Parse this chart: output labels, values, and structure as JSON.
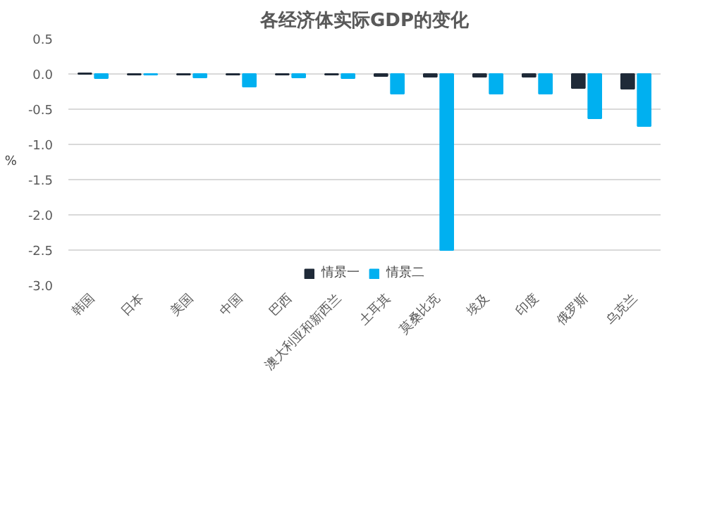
{
  "chart_data": {
    "type": "bar",
    "title": "各经济体实际GDP的变化",
    "ylabel": "%",
    "categories": [
      "韩国",
      "日本",
      "美国",
      "中国",
      "巴西",
      "澳大利亚和新西兰",
      "土耳其",
      "莫桑比克",
      "埃及",
      "印度",
      "俄罗斯",
      "乌克兰"
    ],
    "series": [
      {
        "name": "情景一",
        "color": "#1f2a38",
        "values": [
          0.01,
          -0.01,
          -0.01,
          -0.01,
          -0.01,
          -0.01,
          -0.03,
          -0.04,
          -0.04,
          -0.04,
          -0.2,
          -0.21
        ]
      },
      {
        "name": "情景二",
        "color": "#00b0f0",
        "values": [
          -0.06,
          -0.01,
          -0.05,
          -0.18,
          -0.05,
          -0.06,
          -0.28,
          -2.5,
          -0.28,
          -0.28,
          -0.63,
          -0.74
        ]
      }
    ],
    "ylim": [
      -3.0,
      0.5
    ],
    "yticks": [
      {
        "value": 0.5,
        "label": "0.5"
      },
      {
        "value": 0,
        "label": "0.0"
      },
      {
        "value": -0.5,
        "label": "-0.5"
      },
      {
        "value": -1,
        "label": "-1.0"
      },
      {
        "value": -1.5,
        "label": "-1.5"
      },
      {
        "value": -2,
        "label": "-2.0"
      },
      {
        "value": -2.5,
        "label": "-2.5"
      },
      {
        "value": -3,
        "label": "-3.0"
      }
    ],
    "grid": "y",
    "legend": "bottom"
  }
}
